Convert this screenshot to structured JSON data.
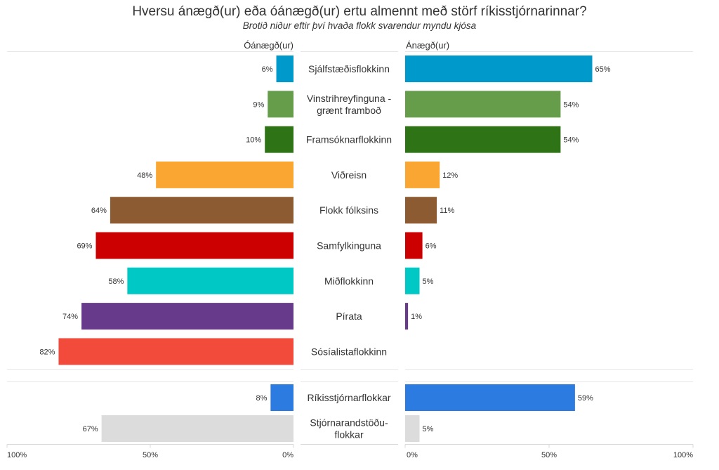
{
  "chart_data": {
    "type": "bar",
    "orientation": "horizontal-diverging",
    "title": "Hversu ánægð(ur) eða óánægð(ur) ertu almennt með störf ríkisstjórnarinnar?",
    "subtitle": "Brotið niður eftir því hvaða flokk svarendur myndu kjósa",
    "left_header": "Óánægð(ur)",
    "right_header": "Ánægð(ur)",
    "xlim": [
      0,
      100
    ],
    "left_ticks": [
      "100%",
      "50%",
      "0%"
    ],
    "right_ticks": [
      "0%",
      "50%",
      "100%"
    ],
    "groups": [
      {
        "name": "parties",
        "categories": [
          {
            "label": [
              "Sjálfstæðisflokkinn"
            ],
            "dissatisfied": 6,
            "satisfied": 65,
            "color": "#0099cc"
          },
          {
            "label": [
              "Vinstrihreyfinguna -",
              "grænt framboð"
            ],
            "dissatisfied": 9,
            "satisfied": 54,
            "color": "#659d4a"
          },
          {
            "label": [
              "Framsóknarflokkinn"
            ],
            "dissatisfied": 10,
            "satisfied": 54,
            "color": "#2e7417"
          },
          {
            "label": [
              "Viðreisn"
            ],
            "dissatisfied": 48,
            "satisfied": 12,
            "color": "#f9a633"
          },
          {
            "label": [
              "Flokk fólksins"
            ],
            "dissatisfied": 64,
            "satisfied": 11,
            "color": "#8c5b32"
          },
          {
            "label": [
              "Samfylkinguna"
            ],
            "dissatisfied": 69,
            "satisfied": 6,
            "color": "#cc0000"
          },
          {
            "label": [
              "Miðflokkinn"
            ],
            "dissatisfied": 58,
            "satisfied": 5,
            "color": "#00c8c4"
          },
          {
            "label": [
              "Pírata"
            ],
            "dissatisfied": 74,
            "satisfied": 1,
            "color": "#683a8c"
          },
          {
            "label": [
              "Sósíalistaflokkinn"
            ],
            "dissatisfied": 82,
            "satisfied": null,
            "color": "#f24b3c"
          }
        ]
      },
      {
        "name": "blocs",
        "categories": [
          {
            "label": [
              "Ríkisstjórnarflokkar"
            ],
            "dissatisfied": 8,
            "satisfied": 59,
            "color": "#2c7be0"
          },
          {
            "label": [
              "Stjórnarandstöðu-",
              "flokkar"
            ],
            "dissatisfied": 67,
            "satisfied": 5,
            "color": "#dcdcdc"
          }
        ]
      }
    ]
  }
}
